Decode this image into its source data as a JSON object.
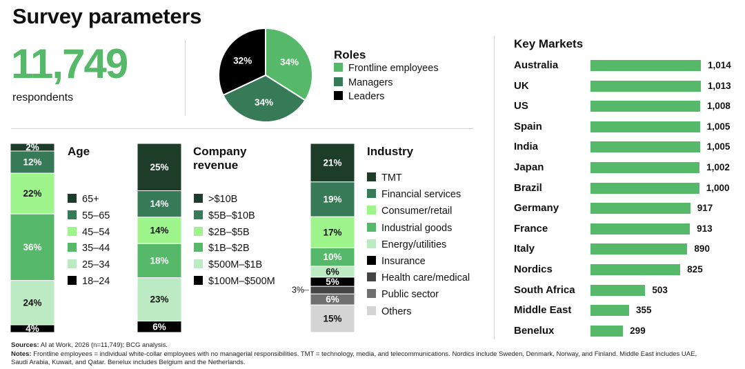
{
  "title": "Survey parameters",
  "respondents": {
    "number": "11,749",
    "caption": "respondents"
  },
  "colors": {
    "c1": "#1e3d28",
    "c2": "#367a57",
    "c3": "#9ef58b",
    "c4": "#56b96a",
    "c5": "#bcebc3",
    "c6": "#000000",
    "c7": "#444444",
    "c8": "#707070",
    "c9": "#d4d4d4"
  },
  "roles": {
    "title": "Roles",
    "slices": [
      {
        "label": "Frontline employees",
        "value": 34,
        "text": "34%",
        "color": "#56b96a"
      },
      {
        "label": "Managers",
        "value": 34,
        "text": "34%",
        "color": "#367a57"
      },
      {
        "label": "Leaders",
        "value": 32,
        "text": "32%",
        "color": "#000000"
      }
    ]
  },
  "chart_data": [
    {
      "type": "pie",
      "title": "Roles",
      "categories": [
        "Frontline employees",
        "Managers",
        "Leaders"
      ],
      "values": [
        34,
        34,
        32
      ]
    },
    {
      "type": "bar",
      "stacked": true,
      "title": "Age",
      "categories": [
        "65+",
        "55–65",
        "45–54",
        "35–44",
        "25–34",
        "18–24"
      ],
      "values": [
        2,
        12,
        22,
        36,
        24,
        4
      ],
      "labels": [
        "2%",
        "12%",
        "22%",
        "36%",
        "24%",
        "4%"
      ]
    },
    {
      "type": "bar",
      "stacked": true,
      "title": "Company revenue",
      "categories": [
        ">$10B",
        "$5B–$10B",
        "$2B–$5B",
        "$1B–$2B",
        "$500M–$1B",
        "$100M–$500M"
      ],
      "values": [
        25,
        14,
        14,
        18,
        23,
        6
      ],
      "labels": [
        "25%",
        "14%",
        "14%",
        "18%",
        "23%",
        "6%"
      ]
    },
    {
      "type": "bar",
      "stacked": true,
      "title": "Industry",
      "categories": [
        "TMT",
        "Financial services",
        "Consumer/retail",
        "Industrial goods",
        "Energy/utilities",
        "Insurance",
        "Health care/medical",
        "Public sector",
        "Others"
      ],
      "values": [
        21,
        19,
        17,
        10,
        6,
        5,
        3,
        6,
        15
      ],
      "labels": [
        "21%",
        "19%",
        "17%",
        "10%",
        "6%",
        "5%",
        "3%",
        "6%",
        "15%"
      ]
    },
    {
      "type": "bar",
      "orientation": "horizontal",
      "title": "Key Markets",
      "categories": [
        "Australia",
        "UK",
        "US",
        "Spain",
        "India",
        "Japan",
        "Brazil",
        "Germany",
        "France",
        "Italy",
        "Nordics",
        "South Africa",
        "Middle East",
        "Benelux"
      ],
      "values": [
        1014,
        1013,
        1008,
        1005,
        1005,
        1002,
        1000,
        917,
        913,
        890,
        825,
        503,
        355,
        299
      ],
      "labels": [
        "1,014",
        "1,013",
        "1,008",
        "1,005",
        "1,005",
        "1,002",
        "1,000",
        "917",
        "913",
        "890",
        "825",
        "503",
        "355",
        "299"
      ]
    }
  ],
  "age": {
    "title": "Age",
    "legend": [
      {
        "label": "65+",
        "color": "#1e3d28"
      },
      {
        "label": "55–65",
        "color": "#367a57"
      },
      {
        "label": "45–54",
        "color": "#9ef58b"
      },
      {
        "label": "35–44",
        "color": "#56b96a"
      },
      {
        "label": "25–34",
        "color": "#bcebc3"
      },
      {
        "label": "18–24",
        "color": "#000000"
      }
    ],
    "segments": [
      {
        "value": 2,
        "text": "2%",
        "color": "#1e3d28",
        "white": true
      },
      {
        "value": 12,
        "text": "12%",
        "color": "#367a57",
        "white": true
      },
      {
        "value": 22,
        "text": "22%",
        "color": "#9ef58b",
        "white": false
      },
      {
        "value": 36,
        "text": "36%",
        "color": "#56b96a",
        "white": true
      },
      {
        "value": 24,
        "text": "24%",
        "color": "#bcebc3",
        "white": false
      },
      {
        "value": 4,
        "text": "4%",
        "color": "#000000",
        "white": true
      }
    ]
  },
  "revenue": {
    "title_line1": "Company",
    "title_line2": "revenue",
    "legend": [
      {
        "label": ">$10B",
        "color": "#1e3d28"
      },
      {
        "label": "$5B–$10B",
        "color": "#367a57"
      },
      {
        "label": "$2B–$5B",
        "color": "#9ef58b"
      },
      {
        "label": "$1B–$2B",
        "color": "#56b96a"
      },
      {
        "label": "$500M–$1B",
        "color": "#bcebc3"
      },
      {
        "label": "$100M–$500M",
        "color": "#000000"
      }
    ],
    "segments": [
      {
        "value": 25,
        "text": "25%",
        "color": "#1e3d28",
        "white": true
      },
      {
        "value": 14,
        "text": "14%",
        "color": "#367a57",
        "white": true
      },
      {
        "value": 14,
        "text": "14%",
        "color": "#9ef58b",
        "white": false
      },
      {
        "value": 18,
        "text": "18%",
        "color": "#56b96a",
        "white": true
      },
      {
        "value": 23,
        "text": "23%",
        "color": "#bcebc3",
        "white": false
      },
      {
        "value": 6,
        "text": "6%",
        "color": "#000000",
        "white": true
      }
    ]
  },
  "industry": {
    "title": "Industry",
    "legend": [
      {
        "label": "TMT",
        "color": "#1e3d28"
      },
      {
        "label": "Financial services",
        "color": "#367a57"
      },
      {
        "label": "Consumer/retail",
        "color": "#9ef58b"
      },
      {
        "label": "Industrial goods",
        "color": "#56b96a"
      },
      {
        "label": "Energy/utilities",
        "color": "#bcebc3"
      },
      {
        "label": "Insurance",
        "color": "#000000"
      },
      {
        "label": "Health care/medical",
        "color": "#444444"
      },
      {
        "label": "Public sector",
        "color": "#707070"
      },
      {
        "label": "Others",
        "color": "#d4d4d4"
      }
    ],
    "segments": [
      {
        "value": 21,
        "text": "21%",
        "color": "#1e3d28",
        "white": true
      },
      {
        "value": 19,
        "text": "19%",
        "color": "#367a57",
        "white": true
      },
      {
        "value": 17,
        "text": "17%",
        "color": "#9ef58b",
        "white": false
      },
      {
        "value": 10,
        "text": "10%",
        "color": "#56b96a",
        "white": true
      },
      {
        "value": 6,
        "text": "6%",
        "color": "#bcebc3",
        "white": false
      },
      {
        "value": 5,
        "text": "5%",
        "color": "#000000",
        "white": true
      },
      {
        "value": 3,
        "text": "3%",
        "color": "#444444",
        "white": true,
        "outside": true
      },
      {
        "value": 6,
        "text": "6%",
        "color": "#707070",
        "white": true
      },
      {
        "value": 15,
        "text": "15%",
        "color": "#d4d4d4",
        "white": false
      }
    ]
  },
  "markets": {
    "title": "Key Markets",
    "max": 1014,
    "items": [
      {
        "name": "Australia",
        "value": 1014,
        "text": "1,014"
      },
      {
        "name": "UK",
        "value": 1013,
        "text": "1,013"
      },
      {
        "name": "US",
        "value": 1008,
        "text": "1,008"
      },
      {
        "name": "Spain",
        "value": 1005,
        "text": "1,005"
      },
      {
        "name": "India",
        "value": 1005,
        "text": "1,005"
      },
      {
        "name": "Japan",
        "value": 1002,
        "text": "1,002"
      },
      {
        "name": "Brazil",
        "value": 1000,
        "text": "1,000"
      },
      {
        "name": "Germany",
        "value": 917,
        "text": "917"
      },
      {
        "name": "France",
        "value": 913,
        "text": "913"
      },
      {
        "name": "Italy",
        "value": 890,
        "text": "890"
      },
      {
        "name": "Nordics",
        "value": 825,
        "text": "825"
      },
      {
        "name": "South Africa",
        "value": 503,
        "text": "503"
      },
      {
        "name": "Middle East",
        "value": 355,
        "text": "355"
      },
      {
        "name": "Benelux",
        "value": 299,
        "text": "299"
      }
    ]
  },
  "footer": {
    "sources_label": "Sources:",
    "sources_text": "AI at Work, 2026 (n=11,749); BCG analysis.",
    "notes_label": "Notes:",
    "notes_text": "Frontline employees = individual white-collar employees with no managerial responsibilities. TMT = technology, media, and telecommunications. Nordics include Sweden, Denmark, Norway, and Finland. Middle East includes UAE, Saudi Arabia, Kuwait, and Qatar. Benelux includes Belgium and the Netherlands."
  }
}
